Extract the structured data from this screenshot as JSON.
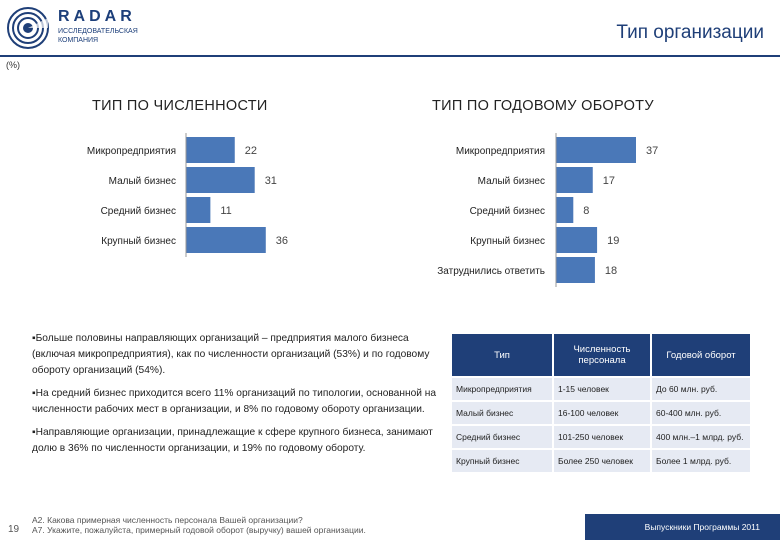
{
  "brand": {
    "name": "RADAR",
    "sub": "ИССЛЕДОВАТЕЛЬСКАЯ КОМПАНИЯ"
  },
  "page_title": "Тип организации",
  "unit_label": "(%)",
  "colors": {
    "bar": "#4a78b8",
    "accent": "#1f3f78"
  },
  "chart_data": [
    {
      "type": "bar",
      "orientation": "horizontal",
      "title": "ТИП ПО ЧИСЛЕННОСТИ",
      "categories": [
        "Микропредприятия",
        "Малый бизнес",
        "Средний бизнес",
        "Крупный бизнес"
      ],
      "values": [
        22,
        31,
        11,
        36
      ],
      "xlim": [
        0,
        37
      ]
    },
    {
      "type": "bar",
      "orientation": "horizontal",
      "title": "ТИП ПО ГОДОВОМУ ОБОРОТУ",
      "categories": [
        "Микропредприятия",
        "Малый бизнес",
        "Средний бизнес",
        "Крупный бизнес",
        "Затруднились ответить"
      ],
      "values": [
        37,
        17,
        8,
        19,
        18
      ],
      "xlim": [
        0,
        37
      ]
    }
  ],
  "bullets": [
    "Больше половины направляющих организаций – предприятия малого бизнеса (включая микропредприятия), как по численности организаций (53%) и по годовому обороту организаций (54%).",
    "На средний бизнес приходится всего 11% организаций по типологии, основанной на численности рабочих мест в организации, и 8% по годовому обороту организации.",
    "Направляющие организации, принадлежащие к сфере крупного бизнеса, занимают долю в 36% по численности организации, и 19% по годовому обороту."
  ],
  "table": {
    "headers": [
      "Тип",
      "Численность персонала",
      "Годовой оборот"
    ],
    "rows": [
      [
        "Микропредприятия",
        "1-15 человек",
        "До 60 млн. руб."
      ],
      [
        "Малый бизнес",
        "16-100 человек",
        "60-400 млн. руб."
      ],
      [
        "Средний бизнес",
        "101-250 человек",
        "400 млн.–1 млрд. руб."
      ],
      [
        "Крупный бизнес",
        "Более 250 человек",
        "Более 1 млрд. руб."
      ]
    ]
  },
  "footer": {
    "page_number": "19",
    "question_1": "А2. Какова примерная численность персонала Вашей организации?",
    "question_2": "А7. Укажите, пожалуйста, примерный годовой оборот (выручку) вашей организации.",
    "program": "Выпускники Программы 2011"
  }
}
